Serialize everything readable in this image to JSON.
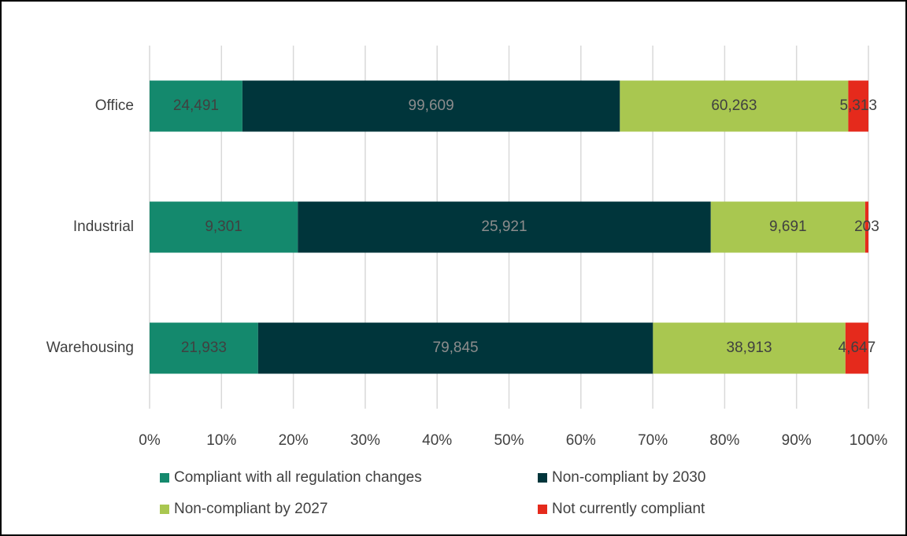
{
  "chart_data": {
    "type": "bar",
    "orientation": "horizontal",
    "stacking": "percent",
    "categories": [
      "Office",
      "Industrial",
      "Warehousing"
    ],
    "series": [
      {
        "name": "Compliant with all regulation changes",
        "color": "#14896d",
        "label_color": "#404040",
        "values": [
          24491,
          9301,
          21933
        ],
        "value_labels": [
          "24,491",
          "9,301",
          "21,933"
        ]
      },
      {
        "name": "Non-compliant by 2030",
        "color": "#00353b",
        "label_color": "#8c8c8c",
        "values": [
          99609,
          25921,
          79845
        ],
        "value_labels": [
          "99,609",
          "25,921",
          "79,845"
        ]
      },
      {
        "name": "Non-compliant by 2027",
        "color": "#a9c750",
        "label_color": "#404040",
        "values": [
          60263,
          9691,
          38913
        ],
        "value_labels": [
          "60,263",
          "9,691",
          "38,913"
        ]
      },
      {
        "name": "Not currently compliant",
        "color": "#e52a1c",
        "label_color": "#404040",
        "values": [
          5313,
          203,
          4647
        ],
        "value_labels": [
          "5,313",
          "203",
          "4,647"
        ]
      }
    ],
    "xlim": [
      0,
      100
    ],
    "xticks": [
      {
        "value": 0,
        "label": "0%"
      },
      {
        "value": 10,
        "label": "10%"
      },
      {
        "value": 20,
        "label": "20%"
      },
      {
        "value": 30,
        "label": "30%"
      },
      {
        "value": 40,
        "label": "40%"
      },
      {
        "value": 50,
        "label": "50%"
      },
      {
        "value": 60,
        "label": "60%"
      },
      {
        "value": 70,
        "label": "70%"
      },
      {
        "value": 80,
        "label": "80%"
      },
      {
        "value": 90,
        "label": "90%"
      },
      {
        "value": 100,
        "label": "100%"
      }
    ],
    "grid": true,
    "legend": "bottom"
  }
}
